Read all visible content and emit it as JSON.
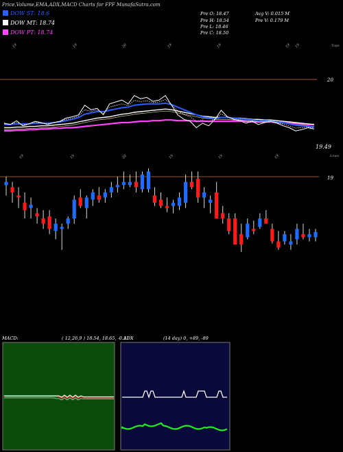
{
  "header": {
    "title": "Price,Volume,EMA,ADX,MACD Charts for FPF MunafaSutra.com",
    "legend": [
      {
        "label": "DOW ST: 18.6",
        "color": "#2a5dff"
      },
      {
        "label": "DOW MT: 18.74",
        "color": "#ffffff"
      },
      {
        "label": "DOW PT: 18.74",
        "color": "#ff44ff"
      }
    ],
    "stats_left": [
      "Pre O: 18.47",
      "Pre H: 18.54",
      "Pre L: 18.46",
      "Pre C: 18.50"
    ],
    "stats_right": [
      "Avg V: 0.015 M",
      "Pre V: 0.179 M"
    ]
  },
  "colors": {
    "up": "#1d6bff",
    "down": "#ff1a1a",
    "ema_short": "#2a5dff",
    "ema_mid": "#ffffff",
    "ema_long": "#ff44ff",
    "ref_line": "#a0521e",
    "macd_bg": "#0a4d0a",
    "adx_bg": "#0a0a3a",
    "adx_green": "#22ee22"
  },
  "chart_data": [
    {
      "type": "line",
      "name": "ema-panel",
      "right_labels": [
        "Tops",
        "20",
        "19.49",
        "Lows"
      ],
      "date_labels_top": [
        "19",
        "19",
        "20",
        "19",
        "19",
        "19",
        "19"
      ],
      "date_labels_bottom": [
        "19",
        "19",
        "20",
        "19",
        "19",
        "19"
      ],
      "y_range": [
        19.3,
        20.3
      ],
      "price": [
        19.62,
        19.6,
        19.66,
        19.58,
        19.61,
        19.65,
        19.63,
        19.6,
        19.63,
        19.65,
        19.7,
        19.72,
        19.75,
        19.9,
        19.83,
        19.85,
        19.75,
        19.92,
        19.95,
        19.98,
        19.92,
        20.05,
        20.0,
        20.02,
        19.96,
        19.98,
        20.05,
        19.9,
        19.75,
        19.68,
        19.65,
        19.55,
        19.62,
        19.58,
        19.68,
        19.82,
        19.72,
        19.68,
        19.66,
        19.62,
        19.65,
        19.6,
        19.63,
        19.65,
        19.62,
        19.58,
        19.55,
        19.5,
        19.52,
        19.55,
        19.53
      ],
      "ema_short": [
        19.6,
        19.6,
        19.61,
        19.61,
        19.61,
        19.62,
        19.62,
        19.62,
        19.63,
        19.64,
        19.66,
        19.68,
        19.71,
        19.76,
        19.78,
        19.8,
        19.8,
        19.82,
        19.84,
        19.86,
        19.87,
        19.9,
        19.91,
        19.92,
        19.92,
        19.92,
        19.93,
        19.91,
        19.87,
        19.83,
        19.79,
        19.75,
        19.72,
        19.7,
        19.69,
        19.71,
        19.71,
        19.7,
        19.69,
        19.68,
        19.67,
        19.66,
        19.66,
        19.65,
        19.64,
        19.63,
        19.61,
        19.59,
        19.58,
        19.57,
        19.56
      ],
      "ema_mid": [
        19.55,
        19.55,
        19.56,
        19.56,
        19.57,
        19.57,
        19.58,
        19.58,
        19.59,
        19.6,
        19.61,
        19.62,
        19.64,
        19.66,
        19.68,
        19.7,
        19.71,
        19.72,
        19.74,
        19.76,
        19.77,
        19.79,
        19.8,
        19.81,
        19.82,
        19.83,
        19.84,
        19.83,
        19.81,
        19.79,
        19.77,
        19.75,
        19.73,
        19.72,
        19.71,
        19.71,
        19.71,
        19.7,
        19.7,
        19.69,
        19.68,
        19.68,
        19.67,
        19.67,
        19.66,
        19.65,
        19.64,
        19.63,
        19.62,
        19.61,
        19.6
      ],
      "ema_long": [
        19.5,
        19.5,
        19.51,
        19.51,
        19.52,
        19.52,
        19.53,
        19.53,
        19.54,
        19.54,
        19.55,
        19.55,
        19.56,
        19.57,
        19.58,
        19.59,
        19.6,
        19.61,
        19.62,
        19.63,
        19.63,
        19.64,
        19.65,
        19.65,
        19.66,
        19.66,
        19.67,
        19.67,
        19.66,
        19.66,
        19.66,
        19.65,
        19.65,
        19.65,
        19.65,
        19.65,
        19.65,
        19.65,
        19.65,
        19.65,
        19.64,
        19.64,
        19.64,
        19.64,
        19.63,
        19.63,
        19.62,
        19.62,
        19.61,
        19.6,
        19.6
      ]
    },
    {
      "type": "bar",
      "name": "candlestick-panel",
      "right_labels": [
        "19"
      ],
      "y_range": [
        18.2,
        19.1
      ],
      "candles": [
        {
          "o": 18.92,
          "h": 19.0,
          "l": 18.82,
          "c": 18.95
        },
        {
          "o": 18.9,
          "h": 18.95,
          "l": 18.75,
          "c": 18.85
        },
        {
          "o": 18.82,
          "h": 18.9,
          "l": 18.7,
          "c": 18.8
        },
        {
          "o": 18.75,
          "h": 18.85,
          "l": 18.6,
          "c": 18.68
        },
        {
          "o": 18.7,
          "h": 18.8,
          "l": 18.6,
          "c": 18.73
        },
        {
          "o": 18.65,
          "h": 18.7,
          "l": 18.55,
          "c": 18.62
        },
        {
          "o": 18.6,
          "h": 18.68,
          "l": 18.5,
          "c": 18.55
        },
        {
          "o": 18.62,
          "h": 18.68,
          "l": 18.45,
          "c": 18.5
        },
        {
          "o": 18.48,
          "h": 18.6,
          "l": 18.4,
          "c": 18.55
        },
        {
          "o": 18.5,
          "h": 18.55,
          "l": 18.3,
          "c": 18.52
        },
        {
          "o": 18.55,
          "h": 18.62,
          "l": 18.5,
          "c": 18.6
        },
        {
          "o": 18.6,
          "h": 18.82,
          "l": 18.55,
          "c": 18.78
        },
        {
          "o": 18.8,
          "h": 18.88,
          "l": 18.7,
          "c": 18.72
        },
        {
          "o": 18.7,
          "h": 18.82,
          "l": 18.6,
          "c": 18.8
        },
        {
          "o": 18.78,
          "h": 18.88,
          "l": 18.72,
          "c": 18.85
        },
        {
          "o": 18.82,
          "h": 18.9,
          "l": 18.75,
          "c": 18.78
        },
        {
          "o": 18.8,
          "h": 18.88,
          "l": 18.75,
          "c": 18.85
        },
        {
          "o": 18.85,
          "h": 18.95,
          "l": 18.8,
          "c": 18.9
        },
        {
          "o": 18.9,
          "h": 19.0,
          "l": 18.85,
          "c": 18.92
        },
        {
          "o": 18.92,
          "h": 19.05,
          "l": 18.88,
          "c": 18.95
        },
        {
          "o": 18.92,
          "h": 19.02,
          "l": 18.9,
          "c": 18.95
        },
        {
          "o": 18.95,
          "h": 19.05,
          "l": 18.85,
          "c": 18.9
        },
        {
          "o": 18.88,
          "h": 19.05,
          "l": 18.85,
          "c": 19.02
        },
        {
          "o": 18.88,
          "h": 19.08,
          "l": 18.85,
          "c": 19.05
        },
        {
          "o": 18.82,
          "h": 18.9,
          "l": 18.72,
          "c": 18.75
        },
        {
          "o": 18.78,
          "h": 18.85,
          "l": 18.7,
          "c": 18.72
        },
        {
          "o": 18.72,
          "h": 18.8,
          "l": 18.66,
          "c": 18.7
        },
        {
          "o": 18.72,
          "h": 18.78,
          "l": 18.65,
          "c": 18.75
        },
        {
          "o": 18.72,
          "h": 18.85,
          "l": 18.68,
          "c": 18.8
        },
        {
          "o": 18.75,
          "h": 19.02,
          "l": 18.7,
          "c": 18.95
        },
        {
          "o": 18.95,
          "h": 19.05,
          "l": 18.88,
          "c": 18.9
        },
        {
          "o": 18.98,
          "h": 19.05,
          "l": 18.75,
          "c": 18.8
        },
        {
          "o": 18.8,
          "h": 18.9,
          "l": 18.7,
          "c": 18.85
        },
        {
          "o": 18.75,
          "h": 18.82,
          "l": 18.65,
          "c": 18.78
        },
        {
          "o": 18.85,
          "h": 18.95,
          "l": 18.6,
          "c": 18.6
        },
        {
          "o": 18.65,
          "h": 18.72,
          "l": 18.55,
          "c": 18.6
        },
        {
          "o": 18.6,
          "h": 18.65,
          "l": 18.45,
          "c": 18.48
        },
        {
          "o": 18.6,
          "h": 18.65,
          "l": 18.35,
          "c": 18.35
        },
        {
          "o": 18.45,
          "h": 18.55,
          "l": 18.28,
          "c": 18.35
        },
        {
          "o": 18.42,
          "h": 18.6,
          "l": 18.4,
          "c": 18.55
        },
        {
          "o": 18.5,
          "h": 18.58,
          "l": 18.45,
          "c": 18.48
        },
        {
          "o": 18.52,
          "h": 18.65,
          "l": 18.5,
          "c": 18.6
        },
        {
          "o": 18.6,
          "h": 18.68,
          "l": 18.55,
          "c": 18.55
        },
        {
          "o": 18.5,
          "h": 18.55,
          "l": 18.36,
          "c": 18.38
        },
        {
          "o": 18.38,
          "h": 18.48,
          "l": 18.3,
          "c": 18.32
        },
        {
          "o": 18.38,
          "h": 18.48,
          "l": 18.35,
          "c": 18.45
        },
        {
          "o": 18.35,
          "h": 18.45,
          "l": 18.3,
          "c": 18.38
        },
        {
          "o": 18.4,
          "h": 18.55,
          "l": 18.35,
          "c": 18.5
        },
        {
          "o": 18.45,
          "h": 18.55,
          "l": 18.4,
          "c": 18.42
        },
        {
          "o": 18.42,
          "h": 18.5,
          "l": 18.38,
          "c": 18.45
        },
        {
          "o": 18.42,
          "h": 18.5,
          "l": 18.38,
          "c": 18.47
        }
      ]
    },
    {
      "type": "line",
      "name": "macd-panel",
      "label": "MACD:",
      "params": "( 12,26,9 ) 18.54, 18.65, -0.11"
    },
    {
      "type": "line",
      "name": "adx-panel",
      "label": "ADX",
      "params": "(14 day) 0, +89, -89"
    }
  ]
}
